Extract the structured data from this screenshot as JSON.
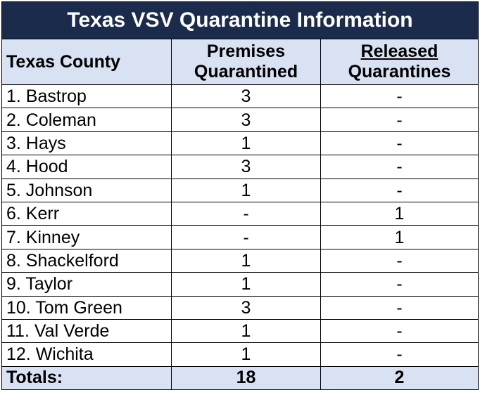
{
  "table": {
    "title": "Texas VSV Quarantine Information",
    "headers": [
      [
        "Texas County"
      ],
      [
        "Premises",
        "Quarantined"
      ],
      [
        "Released",
        "Quarantines"
      ]
    ],
    "rows": [
      [
        "1. Bastrop",
        3,
        "-"
      ],
      [
        "2. Coleman",
        3,
        "-"
      ],
      [
        "3. Hays",
        1,
        "-"
      ],
      [
        "4. Hood",
        3,
        "-"
      ],
      [
        "5. Johnson",
        1,
        "-"
      ],
      [
        "6. Kerr",
        "-",
        1
      ],
      [
        "7. Kinney",
        "-",
        1
      ],
      [
        "8. Shackelford",
        1,
        "-"
      ],
      [
        "9. Taylor",
        1,
        "-"
      ],
      [
        "10. Tom Green",
        3,
        "-"
      ],
      [
        "11. Val Verde",
        1,
        "-"
      ],
      [
        "12. Wichita",
        1,
        "-"
      ]
    ],
    "totals": [
      "Totals:",
      18,
      2
    ]
  }
}
